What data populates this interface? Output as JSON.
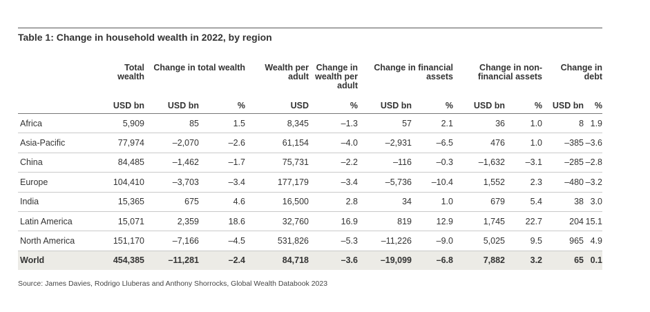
{
  "title": "Table 1: Change in household wealth in 2022, by region",
  "headers": {
    "total_wealth": "Total wealth",
    "change_total_wealth": "Change in total wealth",
    "wealth_per_adult": "Wealth per adult",
    "change_wealth_per_adult": "Change in wealth per adult",
    "change_financial": "Change in financial assets",
    "change_nonfinancial": "Change in non-financial assets",
    "change_debt": "Change in debt"
  },
  "units": [
    "USD bn",
    "USD bn",
    "%",
    "USD",
    "%",
    "USD bn",
    "%",
    "USD bn",
    "%",
    "USD bn",
    "%"
  ],
  "rows": [
    {
      "region": "Africa",
      "values": [
        "5,909",
        "85",
        "1.5",
        "8,345",
        "–1.3",
        "57",
        "2.1",
        "36",
        "1.0",
        "8",
        "1.9"
      ]
    },
    {
      "region": "Asia-Pacific",
      "values": [
        "77,974",
        "–2,070",
        "–2.6",
        "61,154",
        "–4.0",
        "–2,931",
        "–6.5",
        "476",
        "1.0",
        "–385",
        "–3.6"
      ]
    },
    {
      "region": "China",
      "values": [
        "84,485",
        "–1,462",
        "–1.7",
        "75,731",
        "–2.2",
        "–116",
        "–0.3",
        "–1,632",
        "–3.1",
        "–285",
        "–2.8"
      ]
    },
    {
      "region": "Europe",
      "values": [
        "104,410",
        "–3,703",
        "–3.4",
        "177,179",
        "–3.4",
        "–5,736",
        "–10.4",
        "1,552",
        "2.3",
        "–480",
        "–3.2"
      ]
    },
    {
      "region": "India",
      "values": [
        "15,365",
        "675",
        "4.6",
        "16,500",
        "2.8",
        "34",
        "1.0",
        "679",
        "5.4",
        "38",
        "3.0"
      ]
    },
    {
      "region": "Latin America",
      "values": [
        "15,071",
        "2,359",
        "18.6",
        "32,760",
        "16.9",
        "819",
        "12.9",
        "1,745",
        "22.7",
        "204",
        "15.1"
      ]
    },
    {
      "region": "North America",
      "values": [
        "151,170",
        "–7,166",
        "–4.5",
        "531,826",
        "–5.3",
        "–11,226",
        "–9.0",
        "5,025",
        "9.5",
        "965",
        "4.9"
      ]
    }
  ],
  "world": {
    "region": "World",
    "values": [
      "454,385",
      "–11,281",
      "–2.4",
      "84,718",
      "–3.6",
      "–19,099",
      "–6.8",
      "7,882",
      "3.2",
      "65",
      "0.1"
    ]
  },
  "source": "Source: James Davies, Rodrigo Lluberas and Anthony Shorrocks, Global Wealth Databook 2023",
  "colors": {
    "world_row_bg": "#ecebe6",
    "rule": "#555555"
  }
}
